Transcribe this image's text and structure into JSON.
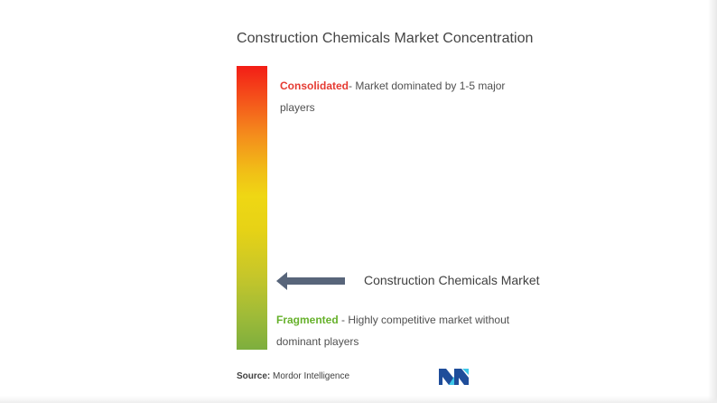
{
  "title": "Construction Chemicals Market Concentration",
  "scale": {
    "top_label": "Consolidated",
    "top_description": "- Market dominated by 1-5 major players",
    "bottom_label": "Fragmented",
    "bottom_description": " - Highly competitive market without dominant players",
    "gradient_colors": {
      "top": "#f31d16",
      "middle": "#efd714",
      "bottom": "#7dae3e"
    },
    "marker_label": "Construction Chemicals Market",
    "marker_level": 0.16,
    "marker_color": "#58657a"
  },
  "source": {
    "label": "Source:",
    "text": " Mordor Intelligence"
  },
  "logo": {
    "icon": "mordor-intelligence-logo-icon",
    "colors": [
      "#1f4d9a",
      "#3ec7e8"
    ]
  }
}
